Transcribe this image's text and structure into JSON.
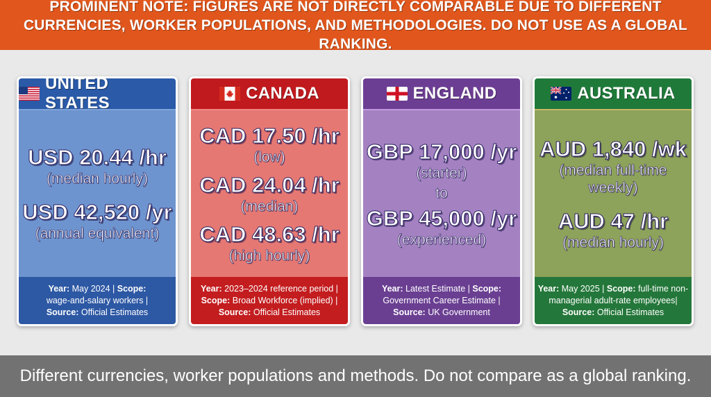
{
  "top_banner": {
    "text": "PROMINENT NOTE: FIGURES ARE NOT DIRECTLY COMPARABLE DUE TO DIFFERENT CURRENCIES, WORKER POPULATIONS, AND METHODOLOGIES. DO NOT USE AS A GLOBAL RANKING.",
    "color": "#e0561c"
  },
  "cards": [
    {
      "country": "UNITED STATES",
      "flag_icon": "us-flag-icon",
      "accent": "#2a5aa8",
      "lines": [
        {
          "big": "USD 20.44 /hr",
          "sub": "(median hourly)"
        },
        {
          "big": "USD 42,520 /yr",
          "sub": "(annual equivalent)"
        }
      ],
      "footer": {
        "year_label": "Year:",
        "year": "May 2024",
        "scope_label": "Scope:",
        "scope": "wage-and-salary workers",
        "source_label": "Source:",
        "source": "Official Estimates"
      }
    },
    {
      "country": "CANADA",
      "flag_icon": "canada-flag-icon",
      "accent": "#c01a1e",
      "lines": [
        {
          "big": "CAD 17.50 /hr",
          "sub": "(low)"
        },
        {
          "big": "CAD 24.04 /hr",
          "sub": "(median)"
        },
        {
          "big": "CAD 48.63 /hr",
          "sub": "(high hourly)"
        }
      ],
      "footer": {
        "year_label": "Year:",
        "year": "2023–2024 reference period",
        "scope_label": "Scope:",
        "scope": "Broad Workforce (implied)",
        "source_label": "Source:",
        "source": "Official Estimates"
      }
    },
    {
      "country": "ENGLAND",
      "flag_icon": "england-flag-icon",
      "accent": "#6c3e93",
      "lines": [
        {
          "big": "GBP 17,000 /yr",
          "sub": "(starter)"
        },
        {
          "connector": "to"
        },
        {
          "big": "GBP 45,000 /yr",
          "sub": "(experienced)"
        }
      ],
      "footer": {
        "year_label": "Year:",
        "year": "Latest Estimate",
        "scope_label": "Scope:",
        "scope": "Government Career Estimate",
        "source_label": "Source:",
        "source": "UK Government"
      }
    },
    {
      "country": "AUSTRALIA",
      "flag_icon": "australia-flag-icon",
      "accent": "#1f7a3a",
      "lines": [
        {
          "big": "AUD 1,840 /wk",
          "sub": "(median full-time weekly)"
        },
        {
          "big": "AUD 47 /hr",
          "sub": "(median hourly)"
        }
      ],
      "footer": {
        "year_label": "Year:",
        "year": "May 2025",
        "scope_label": "Scope:",
        "scope": "full-time non-managerial adult-rate employees",
        "source_label": "Source:",
        "source": "Official Estimates"
      }
    }
  ],
  "bottom_banner": {
    "text": "Different currencies, worker populations and methods. Do not compare as a global ranking.",
    "color": "#727273"
  }
}
